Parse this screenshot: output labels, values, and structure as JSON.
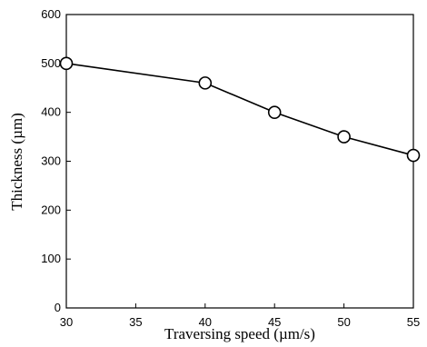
{
  "chart_data": {
    "type": "line",
    "title": "",
    "xlabel": "Traversing speed (µm/s)",
    "ylabel": "Thickness (µm)",
    "x": [
      30,
      40,
      45,
      50,
      55
    ],
    "series": [
      {
        "values": [
          500,
          460,
          400,
          350,
          312
        ]
      }
    ],
    "xlim": [
      30,
      55
    ],
    "ylim": [
      0,
      600
    ],
    "xticks": [
      "30",
      "35",
      "40",
      "45",
      "50",
      "55"
    ],
    "yticks": [
      "0",
      "100",
      "200",
      "300",
      "400",
      "500",
      "600"
    ],
    "grid": false,
    "marker": "open-circle",
    "line_color": "#000000"
  }
}
